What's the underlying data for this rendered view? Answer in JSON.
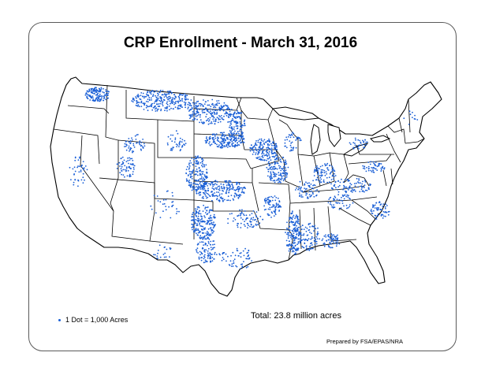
{
  "title": "CRP Enrollment - March 31, 2016",
  "legend": {
    "label": "1 Dot = 1,000 Acres",
    "dot_color": "#1a5fd6"
  },
  "total": "Total: 23.8 million acres",
  "credit": "Prepared by FSA/EPAS/NRA",
  "colors": {
    "dots": "#1a5fd6",
    "border": "#000000",
    "land": "#ffffff",
    "water": "#ffffff"
  },
  "map": {
    "type": "dot-density",
    "region": "contiguous-united-states"
  }
}
